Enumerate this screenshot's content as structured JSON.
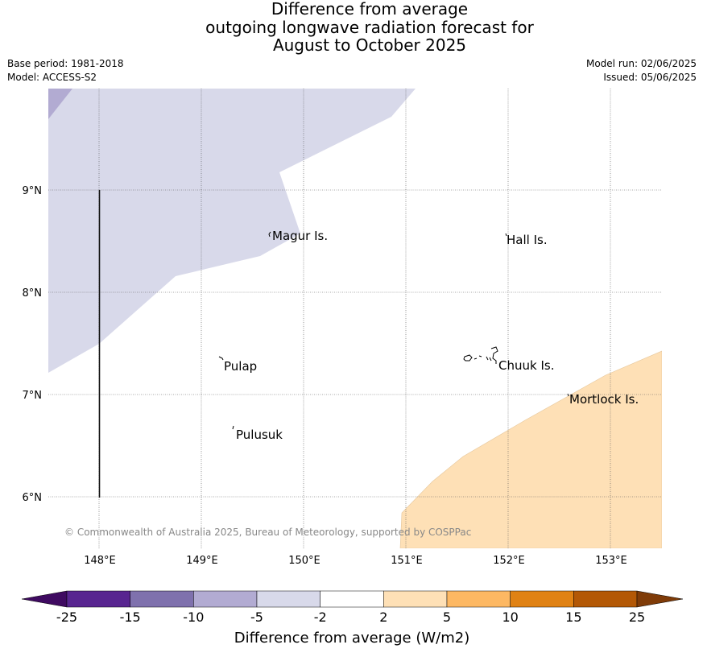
{
  "title": {
    "line1": "Difference from average",
    "line2": "outgoing longwave radiation forecast for",
    "line3": "August to October 2025"
  },
  "meta": {
    "base_period": "Base period: 1981-2018",
    "model": "Model: ACCESS-S2",
    "model_run": "Model run: 02/06/2025",
    "issued": "Issued: 05/06/2025"
  },
  "map": {
    "lon_ticks": [
      "148°E",
      "149°E",
      "150°E",
      "151°E",
      "152°E",
      "153°E"
    ],
    "lat_ticks": [
      "9°N",
      "8°N",
      "7°N",
      "6°N"
    ],
    "places": [
      "Magur Is.",
      "Hall Is.",
      "Pulap",
      "Chuuk Is.",
      "Mortlock Is.",
      "Pulusuk"
    ],
    "copyright": "© Commonwealth of Australia 2025, Bureau of Meteorology, supported by COSPPac"
  },
  "colorbar": {
    "tick_labels": [
      "-25",
      "-15",
      "-10",
      "-5",
      "-2",
      "2",
      "5",
      "10",
      "15",
      "25"
    ],
    "label": "Difference from average (W/m2)",
    "colors": [
      "#3f0a61",
      "#582590",
      "#7f71ad",
      "#b2abd2",
      "#d8d9ea",
      "#ffffff",
      "#fee0b6",
      "#fdb863",
      "#e08214",
      "#b35806",
      "#7f3b08"
    ]
  }
}
